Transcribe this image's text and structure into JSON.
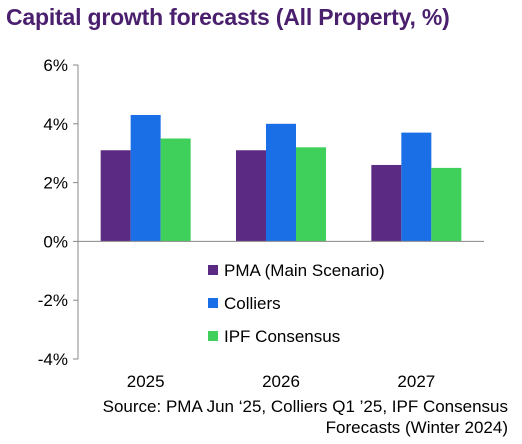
{
  "title": "Capital growth forecasts (All Property, %)",
  "source": {
    "line1": "Source: PMA Jun ‘25, Colliers Q1 ’25, IPF Consensus",
    "line2": "Forecasts (Winter 2024)"
  },
  "chart_data": {
    "type": "bar",
    "title": "Capital growth forecasts (All Property, %)",
    "categories": [
      "2025",
      "2026",
      "2027"
    ],
    "series": [
      {
        "name": "PMA (Main Scenario)",
        "values": [
          3.1,
          3.1,
          2.6
        ],
        "color": "#5b2a82"
      },
      {
        "name": "Colliers",
        "values": [
          4.3,
          4.0,
          3.7
        ],
        "color": "#1a6fe6"
      },
      {
        "name": "IPF Consensus",
        "values": [
          3.5,
          3.2,
          2.5
        ],
        "color": "#3ed05a"
      }
    ],
    "ylim": [
      -4,
      6
    ],
    "yticks": [
      "-4%",
      "-2%",
      "0%",
      "2%",
      "4%",
      "6%"
    ],
    "ytick_values": [
      -4,
      -2,
      0,
      2,
      4,
      6
    ],
    "grid": false,
    "legend_position": "lower-right"
  }
}
